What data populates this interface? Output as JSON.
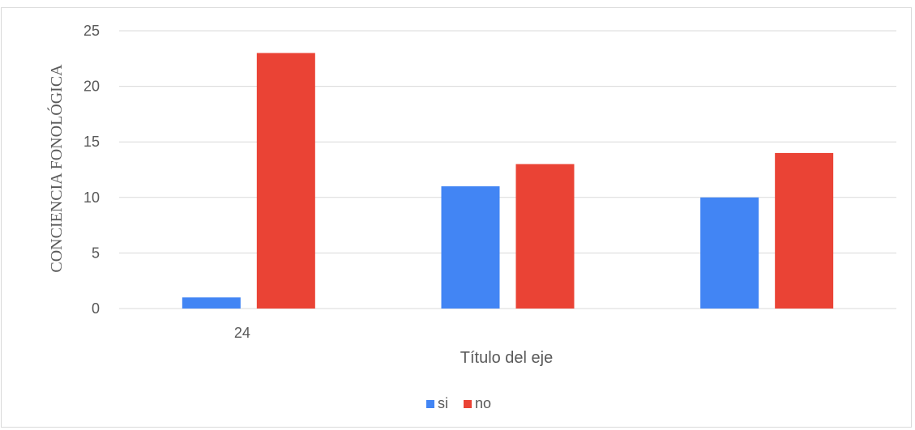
{
  "chart_data": {
    "type": "bar",
    "categories": [
      "24",
      "",
      ""
    ],
    "series": [
      {
        "name": "si",
        "values": [
          1,
          11,
          10
        ],
        "color": "#4285f4"
      },
      {
        "name": "no",
        "values": [
          23,
          13,
          14
        ],
        "color": "#ea4335"
      }
    ],
    "yticks": [
      "0",
      "5",
      "10",
      "15",
      "20",
      "25"
    ],
    "ylim": [
      0,
      25
    ],
    "xlabel": "Título del eje",
    "ylabel": "CONCIENCIA FONOLÓGICA",
    "grid": true,
    "legend_position": "bottom"
  }
}
